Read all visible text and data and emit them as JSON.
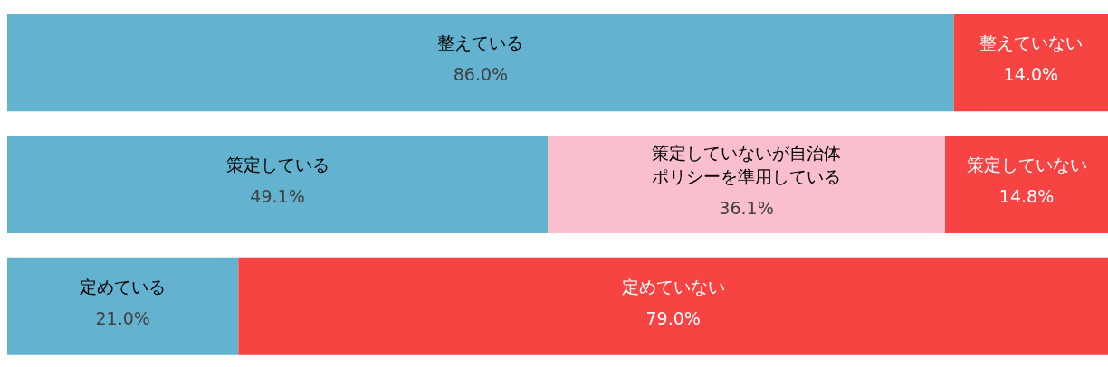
{
  "chart_data": {
    "type": "bar",
    "orientation": "horizontal",
    "stacked": true,
    "legend": false,
    "data_labels": true,
    "categories": [
      null,
      null,
      null
    ],
    "series": [
      {
        "name": "整えている",
        "color": "#63b2cf",
        "values": [
          86.0,
          null,
          null
        ],
        "value_labels": [
          "86.0%",
          null,
          null
        ]
      },
      {
        "name": "整えていない",
        "color": "#f84343",
        "values": [
          14.0,
          null,
          null
        ],
        "value_labels": [
          "14.0%",
          null,
          null
        ]
      },
      {
        "name": "策定している",
        "color": "#63b2cf",
        "values": [
          null,
          49.1,
          null
        ],
        "value_labels": [
          null,
          "49.1%",
          null
        ]
      },
      {
        "name": "策定していないが自治体ポリシーを準用している",
        "color": "#f9bfcd",
        "values": [
          null,
          36.1,
          null
        ],
        "value_labels": [
          null,
          "36.1%",
          null
        ]
      },
      {
        "name": "策定していない",
        "color": "#f84343",
        "values": [
          null,
          14.8,
          null
        ],
        "value_labels": [
          null,
          "14.8%",
          null
        ]
      },
      {
        "name": "定めている",
        "color": "#63b2cf",
        "values": [
          null,
          null,
          21.0
        ],
        "value_labels": [
          null,
          null,
          "21.0%"
        ]
      },
      {
        "name": "定めていない",
        "color": "#f84343",
        "values": [
          null,
          null,
          79.0
        ],
        "value_labels": [
          null,
          null,
          "79.0%"
        ]
      }
    ]
  }
}
